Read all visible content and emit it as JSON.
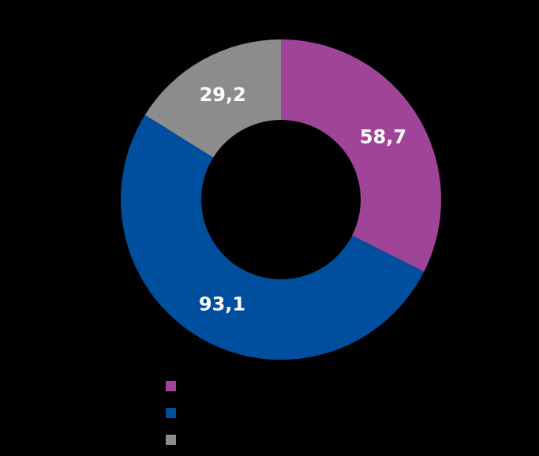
{
  "chart_data": {
    "type": "pie",
    "donut": true,
    "title": "",
    "slices": [
      {
        "label": "",
        "value": 58.7,
        "display": "58,7",
        "color": "#a0449a"
      },
      {
        "label": "",
        "value": 93.1,
        "display": "93,1",
        "color": "#004f9f"
      },
      {
        "label": "",
        "value": 29.2,
        "display": "29,2",
        "color": "#8c8c8c"
      }
    ],
    "legend_position": "bottom",
    "start_angle": "top",
    "direction": "clockwise",
    "background": "#000000"
  }
}
